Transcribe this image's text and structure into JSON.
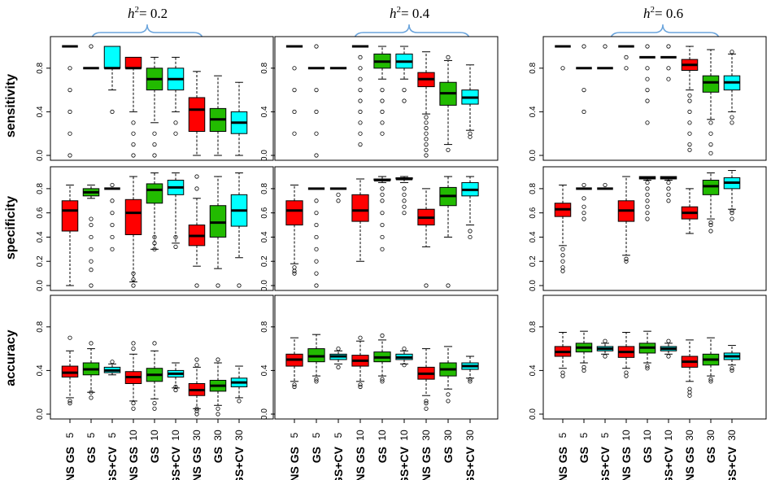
{
  "chart_data": {
    "type": "boxplot-grid",
    "colors": {
      "ENS GS": "#ff0000",
      "GS": "#22bb00",
      "GS+CV": "#00ffff"
    },
    "columns": [
      {
        "title_prefix": "h",
        "title_sup": "2",
        "title_value": "= 0.2"
      },
      {
        "title_prefix": "h",
        "title_sup": "2",
        "title_value": "= 0.4"
      },
      {
        "title_prefix": "h",
        "title_sup": "2",
        "title_value": "= 0.6"
      }
    ],
    "rows": [
      {
        "label": "sensitivity",
        "ylim": [
          0.0,
          1.0
        ],
        "ticks": [
          "0.0",
          "0.4",
          "0.8"
        ],
        "tick_values": [
          0.0,
          0.4,
          0.8
        ]
      },
      {
        "label": "specificity",
        "ylim": [
          0.0,
          0.9
        ],
        "ticks": [
          "0.0",
          "0.2",
          "0.4",
          "0.6",
          "0.8"
        ],
        "tick_values": [
          0.0,
          0.2,
          0.4,
          0.6,
          0.8
        ]
      },
      {
        "label": "accuracy",
        "ylim": [
          0.0,
          1.0
        ],
        "ticks": [
          "0.0",
          "0.4",
          "0.8"
        ],
        "tick_values": [
          0.0,
          0.4,
          0.8
        ]
      }
    ],
    "categories": [
      {
        "method": "ENS GS",
        "n": "5"
      },
      {
        "method": "GS",
        "n": "5"
      },
      {
        "method": "GS+CV",
        "n": "5"
      },
      {
        "method": "ENS GS",
        "n": "10"
      },
      {
        "method": "GS",
        "n": "10"
      },
      {
        "method": "GS+CV",
        "n": "10"
      },
      {
        "method": "ENS GS",
        "n": "30"
      },
      {
        "method": "GS",
        "n": "30"
      },
      {
        "method": "GS+CV",
        "n": "30"
      }
    ],
    "boxes": [
      [
        [
          [
            1,
            1,
            1,
            1,
            1,
            [
              0,
              0.2,
              0.4,
              0.6,
              0.8
            ]
          ],
          [
            0.8,
            0.8,
            0.8,
            0.8,
            0.8,
            [
              1.0
            ]
          ],
          [
            0.6,
            0.8,
            0.8,
            1,
            1,
            [
              0.4
            ]
          ],
          [
            0.4,
            0.8,
            0.8,
            0.9,
            0.9,
            [
              0,
              0.1,
              0.2,
              0.3
            ]
          ],
          [
            0.3,
            0.6,
            0.7,
            0.8,
            0.9,
            [
              0,
              0.1,
              0.2
            ]
          ],
          [
            0.4,
            0.6,
            0.7,
            0.8,
            0.9,
            [
              0.2,
              0.3
            ]
          ],
          [
            0,
            0.22,
            0.42,
            0.53,
            0.77,
            []
          ],
          [
            0,
            0.22,
            0.33,
            0.43,
            0.73,
            []
          ],
          [
            0,
            0.2,
            0.3,
            0.4,
            0.67,
            []
          ]
        ],
        [
          [
            0,
            0.45,
            0.62,
            0.7,
            0.83,
            []
          ],
          [
            0.72,
            0.74,
            0.77,
            0.8,
            0.83,
            [
              0.0,
              0.13,
              0.2,
              0.3,
              0.4,
              0.5,
              0.55
            ]
          ],
          [
            0.8,
            0.8,
            0.8,
            0.8,
            0.8,
            [
              0.3,
              0.4,
              0.5,
              0.6,
              0.7,
              0.83
            ]
          ],
          [
            0.03,
            0.42,
            0.6,
            0.71,
            0.9,
            [
              0,
              0.05,
              0.1
            ]
          ],
          [
            0.3,
            0.68,
            0.79,
            0.84,
            0.93,
            [
              0.3,
              0.35,
              0.4
            ]
          ],
          [
            0.35,
            0.75,
            0.81,
            0.87,
            0.93,
            [
              0.32,
              0.4
            ]
          ],
          [
            0.16,
            0.33,
            0.41,
            0.5,
            0.72,
            [
              0,
              0.8,
              0.9
            ]
          ],
          [
            0.14,
            0.4,
            0.52,
            0.66,
            0.9,
            [
              0
            ]
          ],
          [
            0.23,
            0.49,
            0.62,
            0.75,
            0.93,
            [
              0
            ]
          ]
        ],
        [
          [
            0.15,
            0.34,
            0.38,
            0.44,
            0.58,
            [
              0.1,
              0.12,
              0.7
            ]
          ],
          [
            0.2,
            0.36,
            0.41,
            0.47,
            0.6,
            [
              0.15,
              0.2,
              0.65
            ]
          ],
          [
            0.36,
            0.38,
            0.4,
            0.43,
            0.46,
            [
              0.48
            ]
          ],
          [
            0.12,
            0.28,
            0.34,
            0.39,
            0.55,
            [
              0.05,
              0.1,
              0.6,
              0.65
            ]
          ],
          [
            0.14,
            0.3,
            0.36,
            0.42,
            0.58,
            [
              0.05,
              0.1,
              0.65
            ]
          ],
          [
            0.24,
            0.34,
            0.37,
            0.4,
            0.47,
            [
              0.22,
              0.25
            ]
          ],
          [
            0.05,
            0.17,
            0.22,
            0.28,
            0.43,
            [
              0.0,
              0.03,
              0.05,
              0.45,
              0.5
            ]
          ],
          [
            0.08,
            0.21,
            0.26,
            0.31,
            0.47,
            [
              0.0,
              0.05,
              0.5
            ]
          ],
          [
            0.15,
            0.25,
            0.29,
            0.33,
            0.44,
            [
              0.12
            ]
          ]
        ]
      ],
      [
        [
          [
            1,
            1,
            1,
            1,
            1,
            [
              0.2,
              0.4,
              0.6,
              0.8
            ]
          ],
          [
            0.8,
            0.8,
            0.8,
            0.8,
            0.8,
            [
              0,
              0.2,
              0.4,
              0.6,
              1.0
            ]
          ],
          [
            0.8,
            0.8,
            0.8,
            0.8,
            0.8,
            []
          ],
          [
            1,
            1,
            1,
            1,
            1,
            [
              0.1,
              0.2,
              0.3,
              0.4,
              0.5,
              0.6,
              0.7,
              0.8,
              0.9
            ]
          ],
          [
            0.7,
            0.8,
            0.86,
            0.93,
            1,
            [
              0.2,
              0.3,
              0.4,
              0.5,
              0.6
            ]
          ],
          [
            0.7,
            0.8,
            0.86,
            0.93,
            1,
            [
              0.5,
              0.6
            ]
          ],
          [
            0.38,
            0.63,
            0.7,
            0.76,
            0.95,
            [
              0.0,
              0.05,
              0.1,
              0.15,
              0.2,
              0.25,
              0.3,
              0.35
            ]
          ],
          [
            0.1,
            0.46,
            0.57,
            0.67,
            0.87,
            [
              0.05,
              0.9
            ]
          ],
          [
            0.23,
            0.47,
            0.53,
            0.6,
            0.83,
            [
              0.17,
              0.2
            ]
          ]
        ],
        [
          [
            0.18,
            0.5,
            0.62,
            0.7,
            0.83,
            [
              0.1,
              0.12,
              0.15
            ]
          ],
          [
            0.8,
            0.8,
            0.8,
            0.8,
            0.8,
            [
              0.0,
              0.1,
              0.2,
              0.3,
              0.4,
              0.5,
              0.6,
              0.7
            ]
          ],
          [
            0.8,
            0.8,
            0.8,
            0.8,
            0.8,
            [
              0.7,
              0.75
            ]
          ],
          [
            0.2,
            0.53,
            0.62,
            0.75,
            0.88,
            []
          ],
          [
            0.85,
            0.87,
            0.87,
            0.88,
            0.9,
            [
              0.3,
              0.4,
              0.5,
              0.6,
              0.7,
              0.75,
              0.8
            ]
          ],
          [
            0.85,
            0.88,
            0.88,
            0.89,
            0.9,
            [
              0.6,
              0.65,
              0.7,
              0.75,
              0.8
            ]
          ],
          [
            0.32,
            0.5,
            0.56,
            0.63,
            0.8,
            [
              0.0
            ]
          ],
          [
            0.4,
            0.66,
            0.74,
            0.81,
            0.9,
            [
              0.0
            ]
          ],
          [
            0.5,
            0.74,
            0.79,
            0.85,
            0.9,
            [
              0.4,
              0.45
            ]
          ]
        ],
        [
          [
            0.3,
            0.44,
            0.5,
            0.55,
            0.7,
            [
              0.25,
              0.27
            ]
          ],
          [
            0.35,
            0.48,
            0.53,
            0.6,
            0.73,
            [
              0.3,
              0.32
            ]
          ],
          [
            0.46,
            0.5,
            0.53,
            0.55,
            0.58,
            [
              0.43,
              0.6
            ]
          ],
          [
            0.3,
            0.44,
            0.49,
            0.54,
            0.67,
            [
              0.25,
              0.27,
              0.7
            ]
          ],
          [
            0.35,
            0.48,
            0.52,
            0.57,
            0.68,
            [
              0.3,
              0.32,
              0.72
            ]
          ],
          [
            0.46,
            0.5,
            0.52,
            0.55,
            0.58,
            [
              0.45,
              0.6
            ]
          ],
          [
            0.17,
            0.32,
            0.37,
            0.43,
            0.6,
            [
              0.05,
              0.1,
              0.12
            ]
          ],
          [
            0.23,
            0.35,
            0.41,
            0.47,
            0.62,
            [
              0.12,
              0.18
            ]
          ],
          [
            0.33,
            0.41,
            0.44,
            0.47,
            0.53,
            [
              0.3,
              0.32
            ]
          ]
        ]
      ],
      [
        [
          [
            1,
            1,
            1,
            1,
            1,
            [
              0.8
            ]
          ],
          [
            0.8,
            0.8,
            0.8,
            0.8,
            0.8,
            [
              0.4,
              0.6,
              1.0
            ]
          ],
          [
            0.8,
            0.8,
            0.8,
            0.8,
            0.8,
            [
              1.0
            ]
          ],
          [
            1,
            1,
            1,
            1,
            1,
            [
              0.8,
              0.9
            ]
          ],
          [
            0.9,
            0.9,
            0.9,
            0.9,
            0.9,
            [
              0.3,
              0.5,
              0.6,
              0.7,
              0.8,
              1.0
            ]
          ],
          [
            0.9,
            0.9,
            0.9,
            0.9,
            0.9,
            [
              0.7,
              0.8,
              1.0
            ]
          ],
          [
            0.6,
            0.78,
            0.83,
            0.88,
            1,
            [
              0.05,
              0.1,
              0.2,
              0.3,
              0.4,
              0.5,
              0.55
            ]
          ],
          [
            0.33,
            0.58,
            0.67,
            0.73,
            0.97,
            [
              0.02,
              0.1,
              0.2,
              0.3
            ]
          ],
          [
            0.4,
            0.6,
            0.67,
            0.73,
            0.93,
            [
              0.3,
              0.35,
              0.95
            ]
          ]
        ],
        [
          [
            0.33,
            0.57,
            0.63,
            0.68,
            0.83,
            [
              0.12,
              0.15,
              0.2,
              0.25,
              0.3
            ]
          ],
          [
            0.8,
            0.8,
            0.8,
            0.8,
            0.8,
            [
              0.55,
              0.6,
              0.65,
              0.72,
              0.83
            ]
          ],
          [
            0.8,
            0.8,
            0.8,
            0.8,
            0.8,
            [
              0.83
            ]
          ],
          [
            0.25,
            0.53,
            0.62,
            0.7,
            0.9,
            [
              0.2,
              0.22
            ]
          ],
          [
            0.87,
            0.88,
            0.89,
            0.9,
            0.9,
            [
              0.55,
              0.6,
              0.65,
              0.7,
              0.75,
              0.8,
              0.85
            ]
          ],
          [
            0.87,
            0.88,
            0.89,
            0.9,
            0.9,
            [
              0.7,
              0.75,
              0.8,
              0.85
            ]
          ],
          [
            0.43,
            0.55,
            0.6,
            0.65,
            0.8,
            []
          ],
          [
            0.55,
            0.75,
            0.82,
            0.87,
            0.93,
            [
              0.45,
              0.5,
              0.52
            ]
          ],
          [
            0.63,
            0.8,
            0.85,
            0.89,
            0.95,
            [
              0.55,
              0.6,
              0.62
            ]
          ]
        ],
        [
          [
            0.42,
            0.53,
            0.57,
            0.62,
            0.75,
            [
              0.35,
              0.38
            ]
          ],
          [
            0.47,
            0.57,
            0.61,
            0.65,
            0.76,
            [
              0.4,
              0.43
            ]
          ],
          [
            0.55,
            0.58,
            0.6,
            0.62,
            0.65,
            [
              0.53,
              0.67
            ]
          ],
          [
            0.42,
            0.52,
            0.57,
            0.62,
            0.75,
            [
              0.35,
              0.38
            ]
          ],
          [
            0.47,
            0.56,
            0.61,
            0.65,
            0.76,
            [
              0.42,
              0.44
            ]
          ],
          [
            0.55,
            0.58,
            0.6,
            0.62,
            0.65,
            [
              0.53,
              0.67
            ]
          ],
          [
            0.3,
            0.43,
            0.48,
            0.53,
            0.68,
            [
              0.17,
              0.2,
              0.23
            ]
          ],
          [
            0.35,
            0.45,
            0.5,
            0.55,
            0.7,
            [
              0.3,
              0.32
            ]
          ],
          [
            0.45,
            0.5,
            0.53,
            0.56,
            0.63,
            [
              0.4,
              0.42
            ]
          ]
        ]
      ]
    ]
  }
}
